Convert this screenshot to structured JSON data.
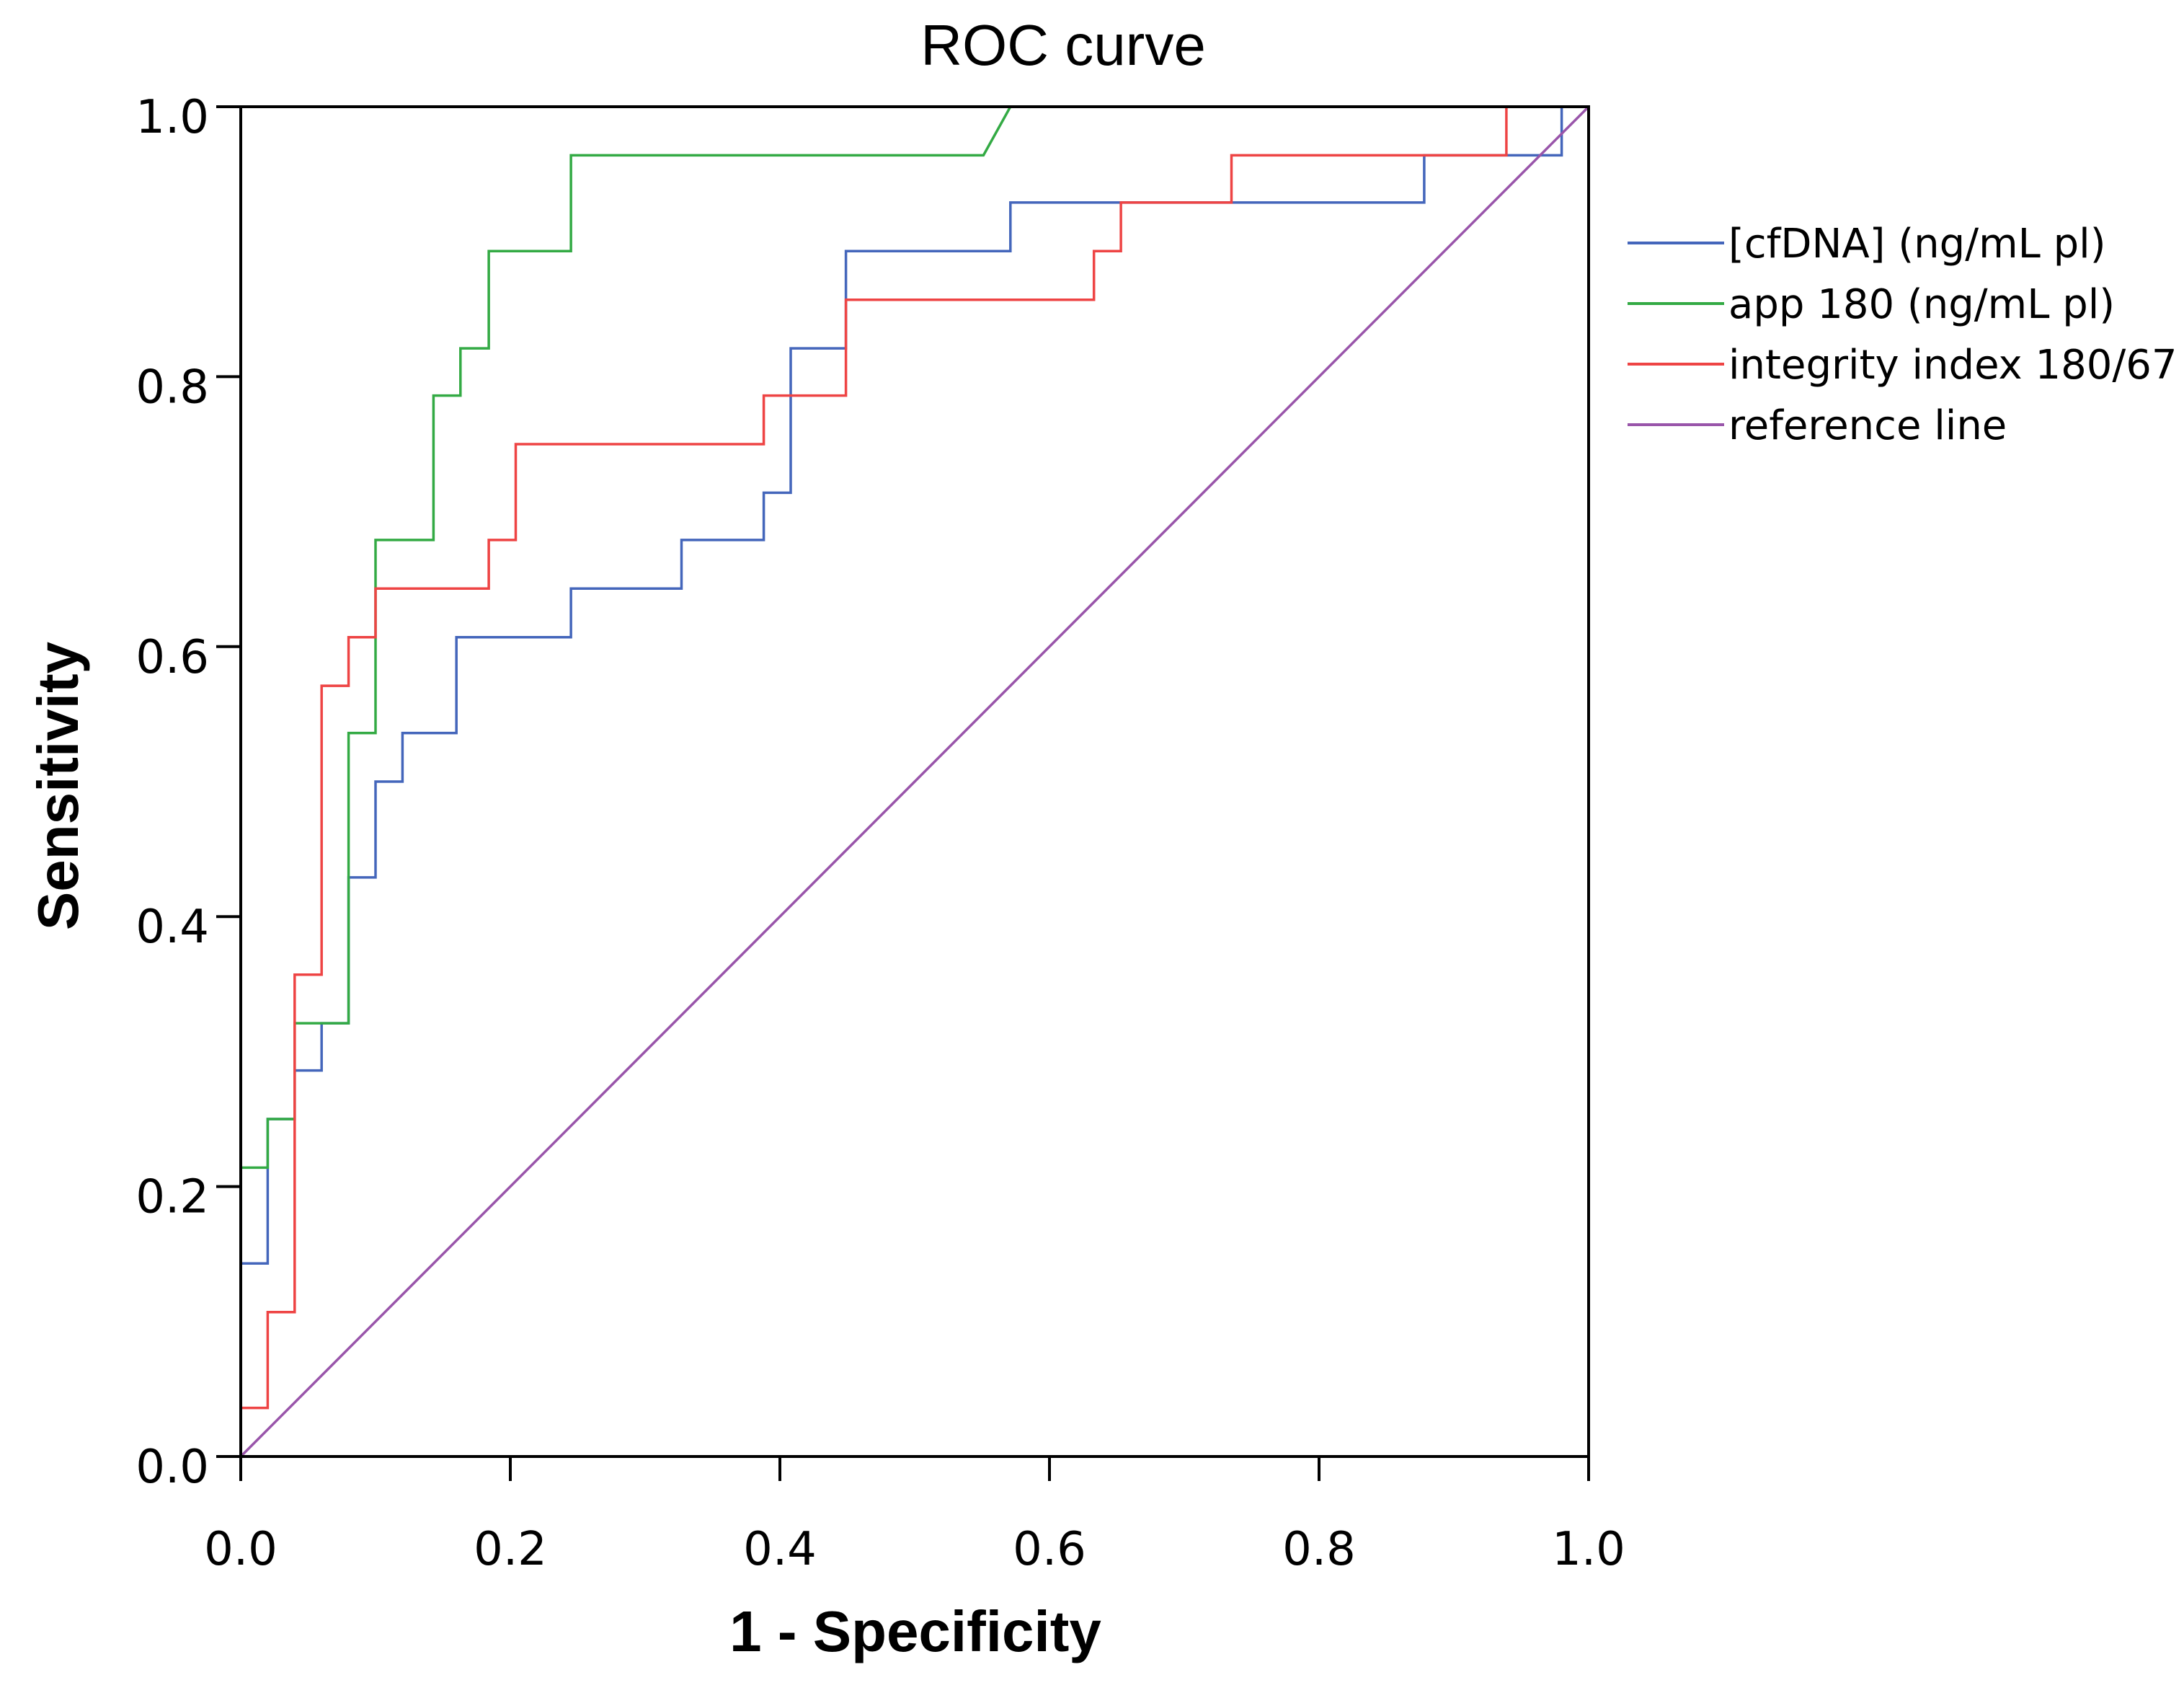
{
  "chart_data": {
    "type": "line",
    "title": "ROC curve",
    "xlabel": "1 - Specificity",
    "ylabel": "Sensitivity",
    "xlim": [
      0,
      1
    ],
    "ylim": [
      0,
      1
    ],
    "x_ticks": [
      "0.0",
      "0.2",
      "0.4",
      "0.6",
      "0.8",
      "1.0"
    ],
    "y_ticks": [
      "0.0",
      "0.2",
      "0.4",
      "0.6",
      "0.8",
      "1.0"
    ],
    "x_tick_values": [
      0,
      0.2,
      0.4,
      0.6,
      0.8,
      1.0
    ],
    "y_tick_values": [
      0,
      0.2,
      0.4,
      0.6,
      0.8,
      1.0
    ],
    "grid": false,
    "legend_position": "right",
    "series": [
      {
        "name": "[cfDNA] (ng/mL pl)",
        "color": "#4466bb",
        "x": [
          0,
          0,
          0.02,
          0.02,
          0.04,
          0.04,
          0.06,
          0.06,
          0.08,
          0.08,
          0.1,
          0.1,
          0.12,
          0.12,
          0.16,
          0.16,
          0.245,
          0.245,
          0.327,
          0.327,
          0.388,
          0.388,
          0.408,
          0.408,
          0.449,
          0.449,
          0.571,
          0.571,
          0.878,
          0.878,
          0.98,
          0.98,
          1.0
        ],
        "y": [
          0,
          0.143,
          0.143,
          0.25,
          0.25,
          0.286,
          0.286,
          0.321,
          0.321,
          0.429,
          0.429,
          0.5,
          0.5,
          0.536,
          0.536,
          0.607,
          0.607,
          0.643,
          0.643,
          0.679,
          0.679,
          0.714,
          0.714,
          0.821,
          0.821,
          0.893,
          0.893,
          0.929,
          0.929,
          0.964,
          0.964,
          1.0,
          1.0
        ]
      },
      {
        "name": "app 180 (ng/mL pl)",
        "color": "#33aa44",
        "x": [
          0,
          0,
          0.02,
          0.02,
          0.04,
          0.04,
          0.08,
          0.08,
          0.1,
          0.1,
          0.143,
          0.143,
          0.163,
          0.163,
          0.184,
          0.184,
          0.245,
          0.245,
          0.551,
          0.571,
          1.0
        ],
        "y": [
          0,
          0.214,
          0.214,
          0.25,
          0.25,
          0.321,
          0.321,
          0.536,
          0.536,
          0.679,
          0.679,
          0.786,
          0.786,
          0.821,
          0.821,
          0.893,
          0.893,
          0.964,
          0.964,
          1.0,
          1.0
        ]
      },
      {
        "name": "integrity index 180/67",
        "color": "#ee4444",
        "x": [
          0,
          0,
          0.02,
          0.02,
          0.04,
          0.04,
          0.06,
          0.06,
          0.08,
          0.08,
          0.1,
          0.1,
          0.184,
          0.184,
          0.204,
          0.204,
          0.388,
          0.388,
          0.449,
          0.449,
          0.633,
          0.633,
          0.653,
          0.653,
          0.735,
          0.735,
          0.939,
          0.939,
          1.0
        ],
        "y": [
          0,
          0.036,
          0.036,
          0.107,
          0.107,
          0.357,
          0.357,
          0.571,
          0.571,
          0.607,
          0.607,
          0.643,
          0.643,
          0.679,
          0.679,
          0.75,
          0.75,
          0.786,
          0.786,
          0.857,
          0.857,
          0.893,
          0.893,
          0.929,
          0.929,
          0.964,
          0.964,
          1.0,
          1.0
        ]
      },
      {
        "name": "reference line",
        "color": "#9955aa",
        "x": [
          0,
          1
        ],
        "y": [
          0,
          1
        ]
      }
    ]
  }
}
